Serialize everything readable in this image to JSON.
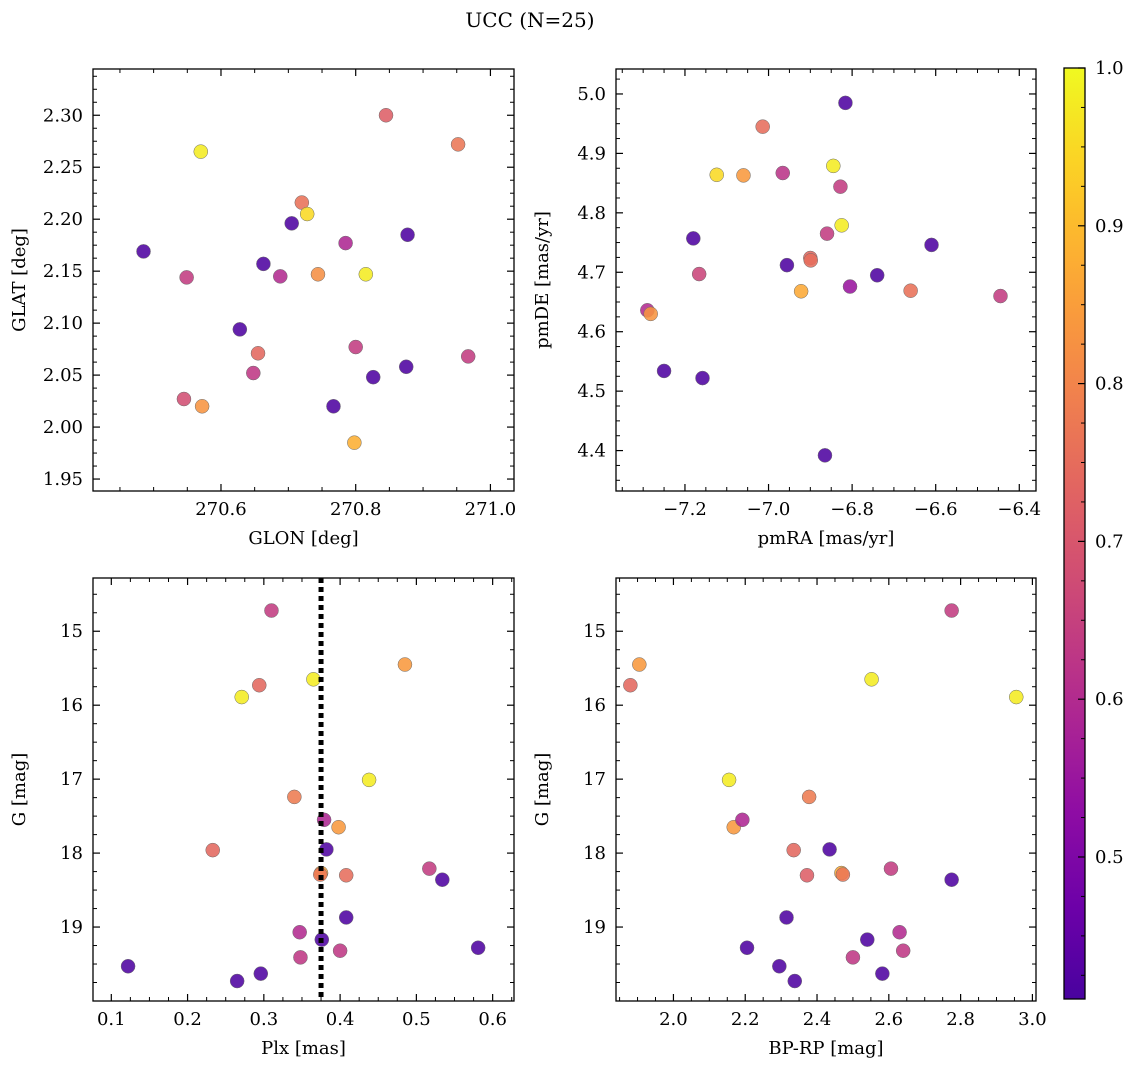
{
  "title": "UCC (N=25)",
  "chart_data": [
    {
      "type": "scatter",
      "panel": "top-left",
      "xlabel": "GLON [deg]",
      "ylabel": "GLAT [deg]",
      "xlim": [
        270.41,
        271.035
      ],
      "ylim": [
        1.9385,
        2.3445
      ],
      "xticks": [
        270.6,
        270.8,
        271.0
      ],
      "xtick_labels": [
        "270.6",
        "270.8",
        "271.0"
      ],
      "yticks": [
        1.95,
        2.0,
        2.05,
        2.1,
        2.15,
        2.2,
        2.25,
        2.3
      ],
      "ytick_labels": [
        "1.95",
        "2.00",
        "2.05",
        "2.10",
        "2.15",
        "2.20",
        "2.25",
        "2.30"
      ],
      "points": [
        {
          "x": 270.485,
          "y": 2.169,
          "c": 0.42
        },
        {
          "x": 270.549,
          "y": 2.144,
          "c": 0.64
        },
        {
          "x": 270.57,
          "y": 2.265,
          "c": 0.98
        },
        {
          "x": 270.545,
          "y": 2.027,
          "c": 0.68
        },
        {
          "x": 270.572,
          "y": 2.02,
          "c": 0.83
        },
        {
          "x": 270.628,
          "y": 2.094,
          "c": 0.42
        },
        {
          "x": 270.648,
          "y": 2.052,
          "c": 0.63
        },
        {
          "x": 270.655,
          "y": 2.071,
          "c": 0.74
        },
        {
          "x": 270.663,
          "y": 2.157,
          "c": 0.42
        },
        {
          "x": 270.688,
          "y": 2.145,
          "c": 0.6
        },
        {
          "x": 270.705,
          "y": 2.196,
          "c": 0.42
        },
        {
          "x": 270.72,
          "y": 2.216,
          "c": 0.76
        },
        {
          "x": 270.728,
          "y": 2.205,
          "c": 0.95
        },
        {
          "x": 270.744,
          "y": 2.147,
          "c": 0.82
        },
        {
          "x": 270.767,
          "y": 2.02,
          "c": 0.42
        },
        {
          "x": 270.785,
          "y": 2.177,
          "c": 0.59
        },
        {
          "x": 270.798,
          "y": 1.985,
          "c": 0.88
        },
        {
          "x": 270.8,
          "y": 2.077,
          "c": 0.64
        },
        {
          "x": 270.815,
          "y": 2.147,
          "c": 0.98
        },
        {
          "x": 270.826,
          "y": 2.048,
          "c": 0.42
        },
        {
          "x": 270.845,
          "y": 2.3,
          "c": 0.72
        },
        {
          "x": 270.875,
          "y": 2.058,
          "c": 0.42
        },
        {
          "x": 270.877,
          "y": 2.185,
          "c": 0.42
        },
        {
          "x": 270.952,
          "y": 2.272,
          "c": 0.77
        },
        {
          "x": 270.967,
          "y": 2.068,
          "c": 0.64
        }
      ]
    },
    {
      "type": "scatter",
      "panel": "top-right",
      "xlabel": "pmRA [mas/yr]",
      "ylabel": "pmDE [mas/yr]",
      "xlim": [
        -7.365,
        -6.36
      ],
      "ylim": [
        4.332,
        5.042
      ],
      "xticks": [
        -7.2,
        -7.0,
        -6.8,
        -6.6,
        -6.4
      ],
      "xtick_labels": [
        "−7.2",
        "−7.0",
        "−6.8",
        "−6.6",
        "−6.4"
      ],
      "yticks": [
        4.4,
        4.5,
        4.6,
        4.7,
        4.8,
        4.9,
        5.0
      ],
      "ytick_labels": [
        "4.4",
        "4.5",
        "4.6",
        "4.7",
        "4.8",
        "4.9",
        "5.0"
      ],
      "points": [
        {
          "x": -7.29,
          "y": 4.636,
          "c": 0.6
        },
        {
          "x": -7.282,
          "y": 4.63,
          "c": 0.83
        },
        {
          "x": -7.25,
          "y": 4.534,
          "c": 0.42
        },
        {
          "x": -7.18,
          "y": 4.757,
          "c": 0.42
        },
        {
          "x": -7.166,
          "y": 4.697,
          "c": 0.66
        },
        {
          "x": -7.158,
          "y": 4.522,
          "c": 0.42
        },
        {
          "x": -7.124,
          "y": 4.864,
          "c": 0.95
        },
        {
          "x": -7.06,
          "y": 4.863,
          "c": 0.84
        },
        {
          "x": -7.014,
          "y": 4.945,
          "c": 0.75
        },
        {
          "x": -6.966,
          "y": 4.867,
          "c": 0.62
        },
        {
          "x": -6.956,
          "y": 4.712,
          "c": 0.42
        },
        {
          "x": -6.922,
          "y": 4.668,
          "c": 0.87
        },
        {
          "x": -6.9,
          "y": 4.724,
          "c": 0.74
        },
        {
          "x": -6.899,
          "y": 4.72,
          "c": 0.75
        },
        {
          "x": -6.865,
          "y": 4.392,
          "c": 0.42
        },
        {
          "x": -6.86,
          "y": 4.765,
          "c": 0.64
        },
        {
          "x": -6.845,
          "y": 4.879,
          "c": 0.98
        },
        {
          "x": -6.828,
          "y": 4.844,
          "c": 0.64
        },
        {
          "x": -6.825,
          "y": 4.779,
          "c": 0.98
        },
        {
          "x": -6.816,
          "y": 4.985,
          "c": 0.42
        },
        {
          "x": -6.805,
          "y": 4.676,
          "c": 0.55
        },
        {
          "x": -6.74,
          "y": 4.695,
          "c": 0.42
        },
        {
          "x": -6.66,
          "y": 4.669,
          "c": 0.76
        },
        {
          "x": -6.61,
          "y": 4.746,
          "c": 0.42
        },
        {
          "x": -6.445,
          "y": 4.66,
          "c": 0.64
        }
      ]
    },
    {
      "type": "scatter",
      "panel": "bottom-left",
      "xlabel": "Plx [mas]",
      "ylabel": "G [mag]",
      "xlim": [
        0.076,
        0.628
      ],
      "ylim": [
        14.28,
        20.0
      ],
      "y_inverted": true,
      "xticks": [
        0.1,
        0.2,
        0.3,
        0.4,
        0.5,
        0.6
      ],
      "xtick_labels": [
        "0.1",
        "0.2",
        "0.3",
        "0.4",
        "0.5",
        "0.6"
      ],
      "yticks": [
        15,
        16,
        17,
        18,
        19
      ],
      "ytick_labels": [
        "15",
        "16",
        "17",
        "18",
        "19"
      ],
      "vline": 0.375,
      "points": [
        {
          "x": 0.122,
          "y": 19.53,
          "c": 0.42
        },
        {
          "x": 0.233,
          "y": 17.96,
          "c": 0.74
        },
        {
          "x": 0.265,
          "y": 19.73,
          "c": 0.42
        },
        {
          "x": 0.271,
          "y": 15.89,
          "c": 0.98
        },
        {
          "x": 0.294,
          "y": 15.73,
          "c": 0.74
        },
        {
          "x": 0.296,
          "y": 19.63,
          "c": 0.42
        },
        {
          "x": 0.31,
          "y": 14.72,
          "c": 0.64
        },
        {
          "x": 0.34,
          "y": 17.24,
          "c": 0.78
        },
        {
          "x": 0.347,
          "y": 19.07,
          "c": 0.6
        },
        {
          "x": 0.348,
          "y": 19.41,
          "c": 0.63
        },
        {
          "x": 0.365,
          "y": 15.65,
          "c": 0.98
        },
        {
          "x": 0.375,
          "y": 18.27,
          "c": 0.87
        },
        {
          "x": 0.374,
          "y": 18.29,
          "c": 0.77
        },
        {
          "x": 0.376,
          "y": 19.17,
          "c": 0.42
        },
        {
          "x": 0.379,
          "y": 17.55,
          "c": 0.59
        },
        {
          "x": 0.382,
          "y": 17.95,
          "c": 0.42
        },
        {
          "x": 0.398,
          "y": 17.65,
          "c": 0.84
        },
        {
          "x": 0.4,
          "y": 19.32,
          "c": 0.63
        },
        {
          "x": 0.408,
          "y": 18.87,
          "c": 0.42
        },
        {
          "x": 0.408,
          "y": 18.3,
          "c": 0.75
        },
        {
          "x": 0.438,
          "y": 17.01,
          "c": 0.98
        },
        {
          "x": 0.485,
          "y": 15.45,
          "c": 0.84
        },
        {
          "x": 0.517,
          "y": 18.21,
          "c": 0.64
        },
        {
          "x": 0.534,
          "y": 18.36,
          "c": 0.42
        },
        {
          "x": 0.581,
          "y": 19.28,
          "c": 0.42
        }
      ]
    },
    {
      "type": "scatter",
      "panel": "bottom-right",
      "xlabel": "BP-RP [mag]",
      "ylabel": "G [mag]",
      "xlim": [
        1.84,
        3.01
      ],
      "ylim": [
        14.28,
        20.0
      ],
      "y_inverted": true,
      "xticks": [
        2.0,
        2.2,
        2.4,
        2.6,
        2.8,
        3.0
      ],
      "xtick_labels": [
        "2.0",
        "2.2",
        "2.4",
        "2.6",
        "2.8",
        "3.0"
      ],
      "yticks": [
        15,
        16,
        17,
        18,
        19
      ],
      "ytick_labels": [
        "15",
        "16",
        "17",
        "18",
        "19"
      ],
      "points": [
        {
          "x": 1.88,
          "y": 15.73,
          "c": 0.74
        },
        {
          "x": 1.905,
          "y": 15.45,
          "c": 0.84
        },
        {
          "x": 2.155,
          "y": 17.01,
          "c": 0.98
        },
        {
          "x": 2.168,
          "y": 17.65,
          "c": 0.84
        },
        {
          "x": 2.192,
          "y": 17.55,
          "c": 0.59
        },
        {
          "x": 2.205,
          "y": 19.28,
          "c": 0.42
        },
        {
          "x": 2.295,
          "y": 19.53,
          "c": 0.42
        },
        {
          "x": 2.315,
          "y": 18.87,
          "c": 0.42
        },
        {
          "x": 2.335,
          "y": 17.96,
          "c": 0.74
        },
        {
          "x": 2.338,
          "y": 19.73,
          "c": 0.42
        },
        {
          "x": 2.372,
          "y": 18.3,
          "c": 0.72
        },
        {
          "x": 2.378,
          "y": 17.24,
          "c": 0.78
        },
        {
          "x": 2.435,
          "y": 17.95,
          "c": 0.42
        },
        {
          "x": 2.468,
          "y": 18.27,
          "c": 0.87
        },
        {
          "x": 2.472,
          "y": 18.29,
          "c": 0.77
        },
        {
          "x": 2.54,
          "y": 19.17,
          "c": 0.42
        },
        {
          "x": 2.5,
          "y": 19.41,
          "c": 0.63
        },
        {
          "x": 2.552,
          "y": 15.65,
          "c": 0.98
        },
        {
          "x": 2.582,
          "y": 19.63,
          "c": 0.42
        },
        {
          "x": 2.606,
          "y": 18.21,
          "c": 0.64
        },
        {
          "x": 2.63,
          "y": 19.07,
          "c": 0.6
        },
        {
          "x": 2.64,
          "y": 19.32,
          "c": 0.63
        },
        {
          "x": 2.775,
          "y": 14.72,
          "c": 0.64
        },
        {
          "x": 2.775,
          "y": 18.36,
          "c": 0.42
        },
        {
          "x": 2.955,
          "y": 15.89,
          "c": 0.98
        }
      ]
    }
  ],
  "colorbar": {
    "colormap": "plasma",
    "range": [
      0.41,
      1.0
    ],
    "ticks": [
      0.5,
      0.6,
      0.7,
      0.8,
      0.9,
      1.0
    ],
    "tick_labels": [
      "0.5",
      "0.6",
      "0.7",
      "0.8",
      "0.9",
      "1.0"
    ]
  }
}
